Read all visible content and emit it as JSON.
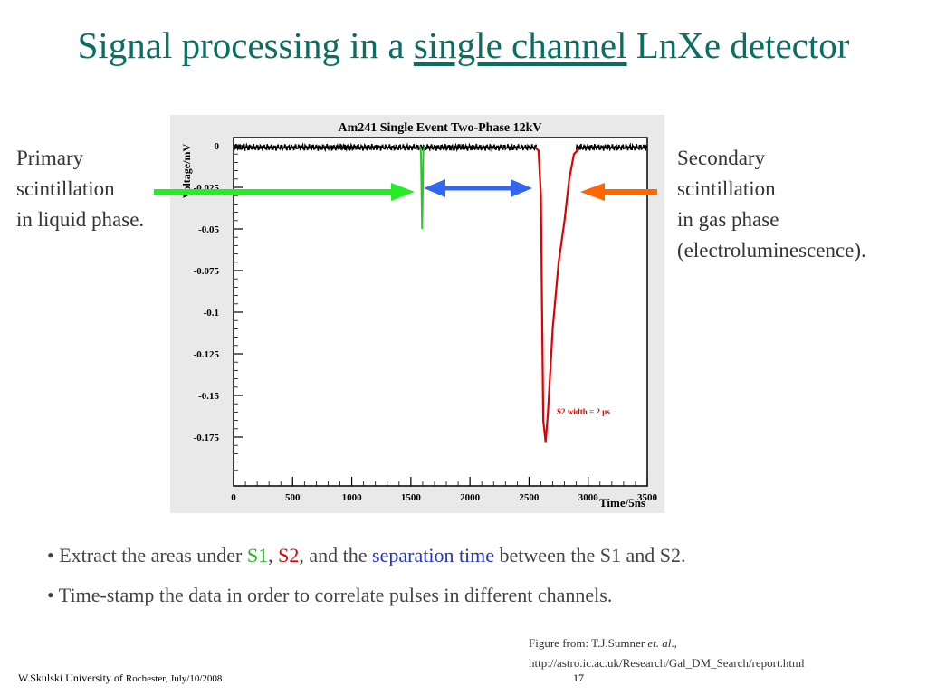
{
  "slide": {
    "title_part1": "Signal processing in a ",
    "title_underlined": "single channel",
    "title_part2": " LnXe detector",
    "left_label": [
      "Primary",
      "scintillation",
      "in liquid phase."
    ],
    "right_label": [
      "Secondary",
      "scintillation",
      "in gas phase",
      "(electroluminescence)."
    ],
    "bullets": {
      "b1_pre": "• Extract the areas under ",
      "b1_s1": "S1",
      "b1_comma": ", ",
      "b1_s2": "S2",
      "b1_mid": ", and the ",
      "b1_sep": "separation time",
      "b1_post": " between the S1 and S2.",
      "b2": "• Time-stamp the data in order to correlate pulses in different channels."
    },
    "credit_line1_pre": "Figure from: T.J.Sumner ",
    "credit_line1_em": "et. al",
    "credit_line1_post": ".,",
    "credit_line2": "http://astro.ic.ac.uk/Research/Gal_DM_Search/report.html",
    "footer_author": "W.Skulski  University of ",
    "footer_place": "Rochester, July/10/2008",
    "page_number": "17",
    "colors": {
      "title": "#0b6e63",
      "s1": "#1fb51f",
      "s2": "#e00000",
      "separation": "#2233cc",
      "arrow_green": "#22ee22",
      "arrow_blue": "#3366ee",
      "arrow_orange": "#ff6600"
    }
  },
  "chart_data": {
    "type": "line",
    "title": "Am241 Single Event Two-Phase 12kV",
    "xlabel": "Time/5ns",
    "ylabel": "Voltage/mV",
    "xlim": [
      0,
      3500
    ],
    "ylim": [
      -0.2,
      0.005
    ],
    "x_ticks": [
      0,
      500,
      1000,
      1500,
      2000,
      2500,
      3000,
      3500
    ],
    "x_tick_labels": [
      "0",
      "500",
      "1000",
      "1500",
      "2000",
      "2500",
      "3000",
      "3500"
    ],
    "y_ticks": [
      0,
      -0.025,
      -0.05,
      -0.075,
      -0.1,
      -0.125,
      -0.15,
      -0.175
    ],
    "y_tick_labels": [
      "0",
      "-0.025",
      "-0.05",
      "-0.075",
      "-0.1",
      "-0.125",
      "-0.15",
      "-0.175"
    ],
    "annotation": "S2 width = 2 µs",
    "series": [
      {
        "color": "#000000",
        "points": [
          [
            0,
            -0.001
          ],
          [
            1580,
            -0.001
          ],
          [
            2580,
            -0.001
          ],
          [
            2900,
            -0.002
          ],
          [
            3500,
            -0.002
          ]
        ]
      },
      {
        "color": "#22cc22",
        "points": [
          [
            1575,
            0.0
          ],
          [
            1585,
            -0.004
          ],
          [
            1595,
            -0.05
          ],
          [
            1605,
            -0.004
          ],
          [
            1615,
            0.0
          ]
        ]
      },
      {
        "color": "#e00000",
        "points": [
          [
            2550,
            -0.001
          ],
          [
            2580,
            -0.003
          ],
          [
            2600,
            -0.03
          ],
          [
            2610,
            -0.1
          ],
          [
            2620,
            -0.165
          ],
          [
            2640,
            -0.178
          ],
          [
            2660,
            -0.16
          ],
          [
            2700,
            -0.11
          ],
          [
            2750,
            -0.07
          ],
          [
            2800,
            -0.045
          ],
          [
            2840,
            -0.02
          ],
          [
            2880,
            -0.005
          ],
          [
            2920,
            -0.002
          ]
        ]
      }
    ]
  }
}
